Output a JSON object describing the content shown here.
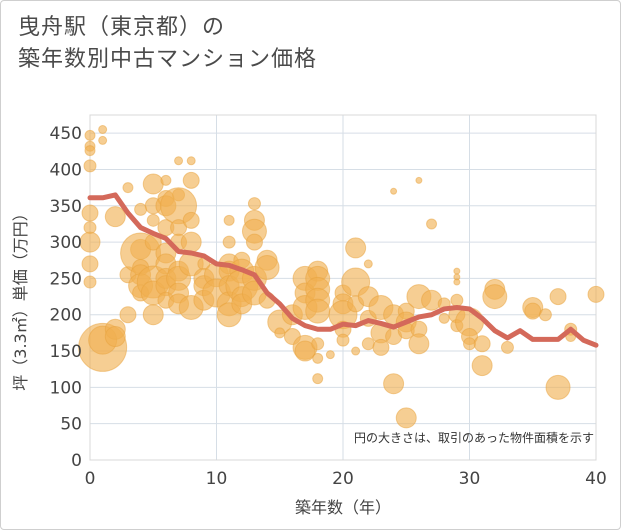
{
  "title_line1": "曳舟駅（東京都）の",
  "title_line2": "築年数別中古マンション価格",
  "chart_data": {
    "type": "scatter",
    "xlabel": "築年数（年）",
    "ylabel": "坪（3.3㎡）単価（万円）",
    "xlim": [
      0,
      40
    ],
    "ylim": [
      0,
      475
    ],
    "x_ticks": [
      0,
      10,
      20,
      30,
      40
    ],
    "y_ticks": [
      0,
      50,
      100,
      150,
      200,
      250,
      300,
      350,
      400,
      450
    ],
    "grid": true,
    "annotation": "円の大きさは、取引のあった物件面積を示す",
    "colors": {
      "bubble": "#f0b050",
      "line": "#d4695a"
    },
    "line": [
      [
        0,
        361
      ],
      [
        1,
        361
      ],
      [
        2,
        365
      ],
      [
        3,
        340
      ],
      [
        4,
        320
      ],
      [
        5,
        312
      ],
      [
        6,
        305
      ],
      [
        7,
        287
      ],
      [
        8,
        285
      ],
      [
        9,
        281
      ],
      [
        10,
        270
      ],
      [
        11,
        268
      ],
      [
        12,
        262
      ],
      [
        13,
        255
      ],
      [
        14,
        230
      ],
      [
        15,
        215
      ],
      [
        16,
        195
      ],
      [
        17,
        185
      ],
      [
        18,
        180
      ],
      [
        19,
        180
      ],
      [
        20,
        187
      ],
      [
        21,
        185
      ],
      [
        22,
        192
      ],
      [
        23,
        188
      ],
      [
        24,
        183
      ],
      [
        25,
        190
      ],
      [
        26,
        197
      ],
      [
        27,
        200
      ],
      [
        28,
        208
      ],
      [
        29,
        210
      ],
      [
        30,
        208
      ],
      [
        31,
        195
      ],
      [
        32,
        178
      ],
      [
        33,
        168
      ],
      [
        34,
        178
      ],
      [
        35,
        166
      ],
      [
        36,
        166
      ],
      [
        37,
        166
      ],
      [
        38,
        180
      ],
      [
        39,
        165
      ],
      [
        40,
        158
      ]
    ],
    "bubbles": [
      [
        0,
        447,
        5
      ],
      [
        0,
        432,
        5
      ],
      [
        0,
        426,
        5
      ],
      [
        0,
        405,
        6
      ],
      [
        0,
        340,
        8
      ],
      [
        0,
        320,
        6
      ],
      [
        0,
        300,
        10
      ],
      [
        0,
        270,
        8
      ],
      [
        0,
        245,
        6
      ],
      [
        1,
        455,
        4
      ],
      [
        1,
        440,
        4
      ],
      [
        1,
        155,
        24
      ],
      [
        1,
        165,
        14
      ],
      [
        2,
        335,
        10
      ],
      [
        2,
        180,
        10
      ],
      [
        2,
        170,
        10
      ],
      [
        3,
        375,
        5
      ],
      [
        3,
        255,
        8
      ],
      [
        3,
        200,
        8
      ],
      [
        4,
        345,
        6
      ],
      [
        4,
        290,
        10
      ],
      [
        4,
        285,
        20
      ],
      [
        4,
        265,
        8
      ],
      [
        4,
        255,
        10
      ],
      [
        4,
        240,
        12
      ],
      [
        4,
        230,
        8
      ],
      [
        5,
        380,
        10
      ],
      [
        5,
        350,
        8
      ],
      [
        5,
        330,
        6
      ],
      [
        5,
        300,
        8
      ],
      [
        5,
        245,
        16
      ],
      [
        5,
        230,
        12
      ],
      [
        5,
        200,
        10
      ],
      [
        6,
        385,
        5
      ],
      [
        6,
        360,
        8
      ],
      [
        6,
        350,
        10
      ],
      [
        6,
        320,
        8
      ],
      [
        6,
        285,
        10
      ],
      [
        6,
        270,
        10
      ],
      [
        6,
        250,
        10
      ],
      [
        6,
        240,
        10
      ],
      [
        6,
        220,
        8
      ],
      [
        7,
        412,
        4
      ],
      [
        7,
        365,
        6
      ],
      [
        7,
        350,
        18
      ],
      [
        7,
        320,
        8
      ],
      [
        7,
        300,
        8
      ],
      [
        7,
        260,
        10
      ],
      [
        7,
        250,
        12
      ],
      [
        7,
        230,
        10
      ],
      [
        7,
        215,
        10
      ],
      [
        8,
        412,
        4
      ],
      [
        8,
        385,
        8
      ],
      [
        8,
        330,
        8
      ],
      [
        8,
        300,
        10
      ],
      [
        8,
        270,
        12
      ],
      [
        8,
        210,
        12
      ],
      [
        9,
        270,
        6
      ],
      [
        9,
        250,
        10
      ],
      [
        9,
        240,
        10
      ],
      [
        9,
        220,
        10
      ],
      [
        10,
        255,
        12
      ],
      [
        10,
        230,
        14
      ],
      [
        11,
        330,
        5
      ],
      [
        11,
        300,
        6
      ],
      [
        11,
        270,
        10
      ],
      [
        11,
        260,
        10
      ],
      [
        11,
        240,
        10
      ],
      [
        11,
        215,
        12
      ],
      [
        11,
        200,
        12
      ],
      [
        12,
        275,
        8
      ],
      [
        12,
        260,
        12
      ],
      [
        12,
        240,
        16
      ],
      [
        12,
        225,
        10
      ],
      [
        12,
        215,
        10
      ],
      [
        13,
        353,
        6
      ],
      [
        13,
        330,
        10
      ],
      [
        13,
        315,
        12
      ],
      [
        13,
        300,
        8
      ],
      [
        13,
        250,
        12
      ],
      [
        13,
        230,
        12
      ],
      [
        14,
        275,
        10
      ],
      [
        14,
        265,
        12
      ],
      [
        14,
        220,
        8
      ],
      [
        15,
        190,
        12
      ],
      [
        15,
        175,
        5
      ],
      [
        16,
        200,
        10
      ],
      [
        16,
        170,
        8
      ],
      [
        17,
        250,
        12
      ],
      [
        17,
        230,
        10
      ],
      [
        17,
        210,
        12
      ],
      [
        17,
        155,
        12
      ],
      [
        17,
        150,
        10
      ],
      [
        18,
        260,
        10
      ],
      [
        18,
        250,
        12
      ],
      [
        18,
        235,
        12
      ],
      [
        18,
        220,
        12
      ],
      [
        18,
        205,
        12
      ],
      [
        18,
        160,
        6
      ],
      [
        18,
        140,
        5
      ],
      [
        18,
        112,
        5
      ],
      [
        19,
        145,
        4
      ],
      [
        20,
        230,
        8
      ],
      [
        20,
        215,
        10
      ],
      [
        20,
        200,
        14
      ],
      [
        20,
        180,
        8
      ],
      [
        20,
        165,
        6
      ],
      [
        21,
        292,
        10
      ],
      [
        21,
        245,
        14
      ],
      [
        21,
        215,
        8
      ],
      [
        21,
        150,
        4
      ],
      [
        22,
        270,
        4
      ],
      [
        22,
        225,
        10
      ],
      [
        22,
        195,
        8
      ],
      [
        22,
        160,
        6
      ],
      [
        23,
        210,
        12
      ],
      [
        23,
        175,
        10
      ],
      [
        23,
        155,
        8
      ],
      [
        24,
        370,
        3
      ],
      [
        24,
        200,
        10
      ],
      [
        24,
        170,
        8
      ],
      [
        24,
        105,
        10
      ],
      [
        25,
        205,
        8
      ],
      [
        25,
        190,
        10
      ],
      [
        25,
        178,
        8
      ],
      [
        25,
        58,
        10
      ],
      [
        26,
        385,
        3
      ],
      [
        26,
        225,
        12
      ],
      [
        26,
        180,
        8
      ],
      [
        26,
        160,
        10
      ],
      [
        27,
        325,
        5
      ],
      [
        27,
        220,
        10
      ],
      [
        28,
        215,
        6
      ],
      [
        28,
        195,
        5
      ],
      [
        29,
        260,
        3
      ],
      [
        29,
        252,
        3
      ],
      [
        29,
        245,
        3
      ],
      [
        29,
        220,
        6
      ],
      [
        29,
        200,
        8
      ],
      [
        29,
        185,
        6
      ],
      [
        30,
        190,
        14
      ],
      [
        30,
        170,
        8
      ],
      [
        30,
        160,
        6
      ],
      [
        31,
        130,
        10
      ],
      [
        31,
        160,
        8
      ],
      [
        32,
        235,
        10
      ],
      [
        32,
        225,
        12
      ],
      [
        33,
        155,
        6
      ],
      [
        35,
        210,
        10
      ],
      [
        35,
        205,
        8
      ],
      [
        36,
        200,
        6
      ],
      [
        37,
        225,
        8
      ],
      [
        37,
        100,
        12
      ],
      [
        38,
        180,
        6
      ],
      [
        38,
        170,
        5
      ],
      [
        40,
        228,
        8
      ]
    ]
  }
}
